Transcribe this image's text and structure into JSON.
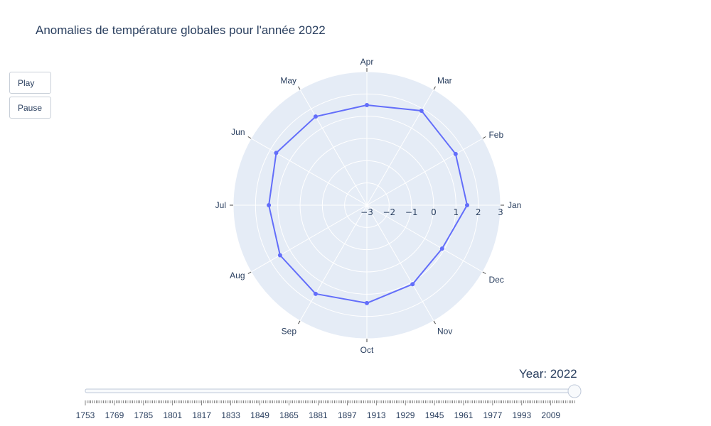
{
  "title": "Anomalies de température globales pour l'année 2022",
  "buttons": {
    "play": "Play",
    "pause": "Pause"
  },
  "slider": {
    "label_prefix": "Year: ",
    "current_value": "2022",
    "range": [
      1753,
      2022
    ],
    "tick_labels": [
      "1753",
      "1769",
      "1785",
      "1801",
      "1817",
      "1833",
      "1849",
      "1865",
      "1881",
      "1897",
      "1913",
      "1929",
      "1945",
      "1961",
      "1977",
      "1993",
      "2009"
    ]
  },
  "colors": {
    "polar_bg": "#e5ecf6",
    "grid": "#ffffff",
    "line": "#636efa",
    "text": "#2a3f5f"
  },
  "chart_data": {
    "type": "line",
    "subtype": "polar",
    "title": "Anomalies de température globales pour l'année 2022",
    "theta": [
      "Jan",
      "Feb",
      "Mar",
      "Apr",
      "May",
      "Jun",
      "Jul",
      "Aug",
      "Sep",
      "Oct",
      "Nov",
      "Dec"
    ],
    "series": [
      {
        "values": [
          1.5,
          1.6,
          1.9,
          1.5,
          1.6,
          1.7,
          1.4,
          1.5,
          1.6,
          1.4,
          1.1,
          0.9
        ]
      }
    ],
    "radial_ticks": [
      "−3",
      "−2",
      "−1",
      "0",
      "1",
      "2",
      "3"
    ],
    "radial_range": [
      -3,
      3
    ],
    "grid": true
  }
}
